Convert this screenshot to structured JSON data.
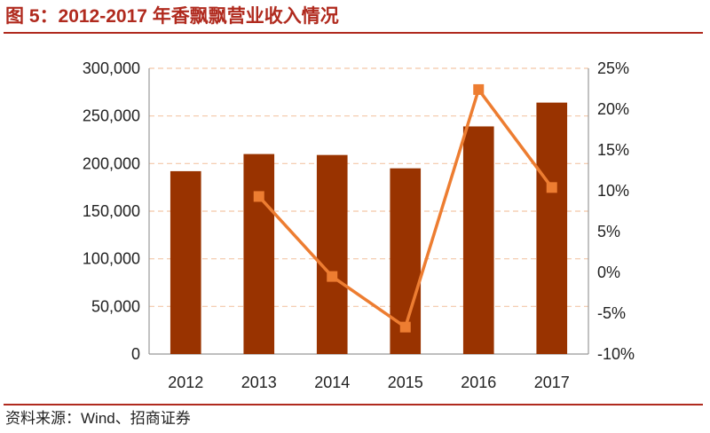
{
  "figure": {
    "title": "图 5：2012-2017 年香飘飘营业收入情况",
    "source": "资料来源：Wind、招商证券"
  },
  "colors": {
    "bar": "#993300",
    "line": "#ed7d31",
    "grid": "#f4c7a8",
    "axis": "#999999",
    "title": "#b02a1e"
  },
  "chart_data": {
    "type": "bar",
    "categories": [
      "2012",
      "2013",
      "2014",
      "2015",
      "2016",
      "2017"
    ],
    "series": [
      {
        "values": [
          192000,
          210000,
          209000,
          195000,
          239000,
          264000
        ],
        "axis": "left",
        "kind": "bar"
      },
      {
        "values": [
          null,
          9.3,
          -0.5,
          -6.7,
          22.4,
          10.4
        ],
        "axis": "right",
        "kind": "line",
        "marker": "square"
      }
    ],
    "left_axis": {
      "range": [
        0,
        300000
      ],
      "ticks": [
        "0",
        "50,000",
        "100,000",
        "150,000",
        "200,000",
        "250,000",
        "300,000"
      ]
    },
    "right_axis": {
      "range": [
        -10,
        25
      ],
      "ticks": [
        "-10%",
        "-5%",
        "0%",
        "5%",
        "10%",
        "15%",
        "20%",
        "25%"
      ]
    },
    "grid": "horizontal dashed",
    "legend": "none"
  }
}
